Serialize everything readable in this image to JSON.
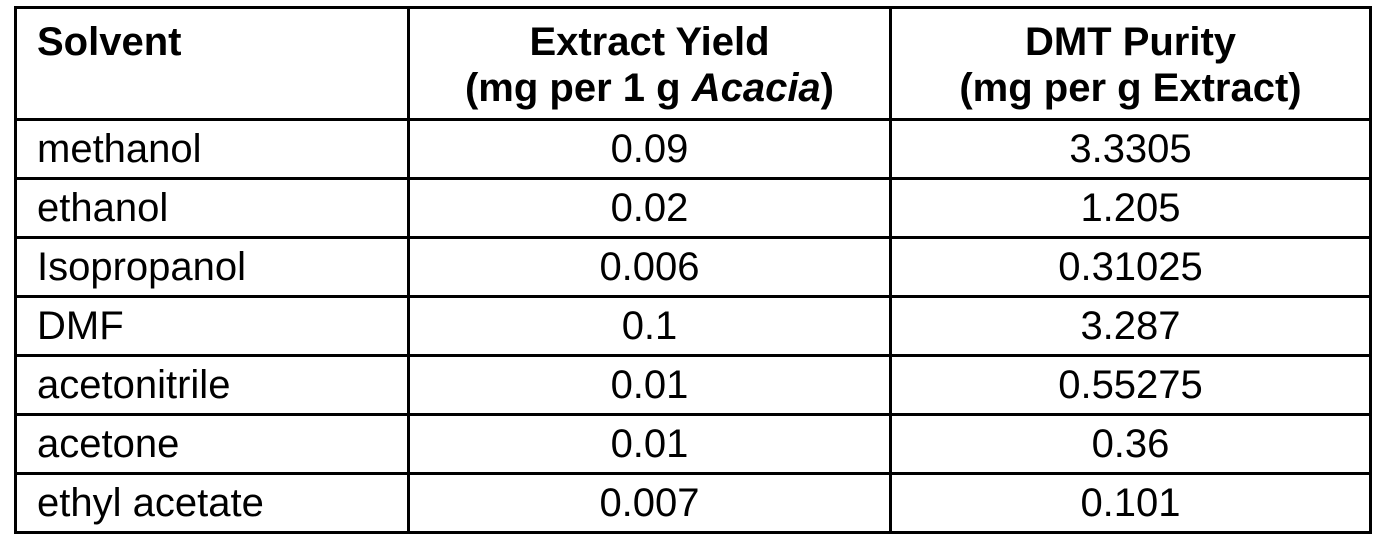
{
  "table": {
    "headers": {
      "solvent": "Solvent",
      "yield_line1": "Extract Yield",
      "yield_line2_pre": "(mg per 1 g ",
      "yield_line2_italic": "Acacia",
      "yield_line2_post": ")",
      "purity_line1": "DMT Purity",
      "purity_line2": "(mg per g Extract)"
    },
    "rows": [
      {
        "solvent": "methanol",
        "yield": "0.09",
        "purity": "3.3305"
      },
      {
        "solvent": "ethanol",
        "yield": "0.02",
        "purity": "1.205"
      },
      {
        "solvent": "Isopropanol",
        "yield": "0.006",
        "purity": "0.31025"
      },
      {
        "solvent": "DMF",
        "yield": "0.1",
        "purity": "3.287"
      },
      {
        "solvent": "acetonitrile",
        "yield": "0.01",
        "purity": "0.55275"
      },
      {
        "solvent": "acetone",
        "yield": "0.01",
        "purity": "0.36"
      },
      {
        "solvent": "ethyl acetate",
        "yield": "0.007",
        "purity": "0.101"
      }
    ]
  }
}
